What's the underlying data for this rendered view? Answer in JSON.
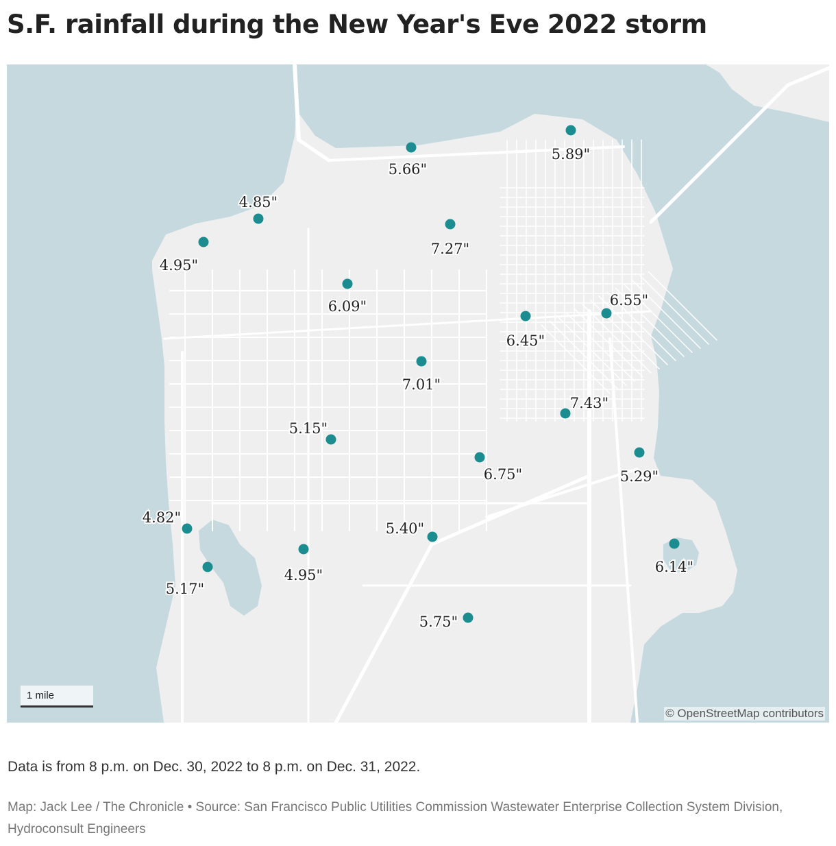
{
  "title": "S.F. rainfall during the New Year's Eve 2022 storm",
  "map": {
    "colors": {
      "water": "#c5d9df",
      "land": "#efefef",
      "road": "#ffffff",
      "marker": "#1b8c8f",
      "label": "#222222"
    },
    "stations": [
      {
        "value": "5.66\""
      },
      {
        "value": "5.89\""
      },
      {
        "value": "4.85\""
      },
      {
        "value": "4.95\""
      },
      {
        "value": "7.27\""
      },
      {
        "value": "6.09\""
      },
      {
        "value": "6.55\""
      },
      {
        "value": "6.45\""
      },
      {
        "value": "7.01\""
      },
      {
        "value": "7.43\""
      },
      {
        "value": "5.15\""
      },
      {
        "value": "6.75\""
      },
      {
        "value": "5.29\""
      },
      {
        "value": "4.82\""
      },
      {
        "value": "5.40\""
      },
      {
        "value": "6.14\""
      },
      {
        "value": "4.95\""
      },
      {
        "value": "5.17\""
      },
      {
        "value": "5.75\""
      }
    ],
    "scale_label": "1 mile",
    "attribution": "© OpenStreetMap contributors"
  },
  "note": "Data is from 8 p.m. on Dec. 30, 2022 to 8 p.m. on Dec. 31, 2022.",
  "source": "Map: Jack Lee / The Chronicle • Source: San Francisco Public Utilities Commission Wastewater Enterprise Collection System Division, Hydroconsult Engineers"
}
